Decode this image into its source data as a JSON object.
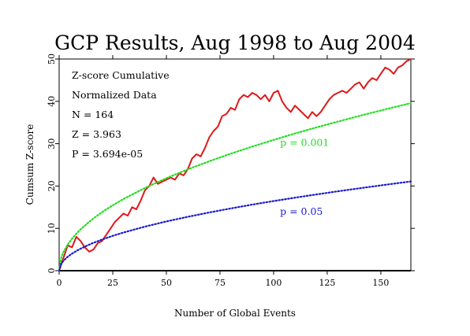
{
  "chart_data": {
    "type": "line",
    "title": "GCP Results, Aug 1998 to Aug 2004",
    "xlabel": "Number of Global Events",
    "ylabel": "Cumsum Z-score",
    "xlim": [
      0,
      164
    ],
    "ylim": [
      0,
      50
    ],
    "x_ticks": [
      0,
      25,
      50,
      75,
      100,
      125,
      150
    ],
    "y_ticks": [
      0,
      10,
      20,
      30,
      40,
      50
    ],
    "grid": false,
    "stats": [
      "Z-score Cumulative",
      "Normalized Data",
      "N = 164",
      "Z = 3.963",
      "P = 3.694e-05"
    ],
    "annotations": [
      {
        "text": "p = 0.001",
        "color": "#22dd22"
      },
      {
        "text": "p = 0.05",
        "color": "#1a1acc"
      }
    ],
    "series": [
      {
        "name": "cumulative",
        "color": "#e01818",
        "style": "solid",
        "x": [
          0,
          2,
          4,
          6,
          8,
          10,
          12,
          14,
          16,
          18,
          20,
          22,
          24,
          26,
          28,
          30,
          32,
          34,
          36,
          38,
          40,
          42,
          44,
          46,
          48,
          50,
          52,
          54,
          56,
          58,
          60,
          62,
          64,
          66,
          68,
          70,
          72,
          74,
          76,
          78,
          80,
          82,
          84,
          86,
          88,
          90,
          92,
          94,
          96,
          98,
          100,
          102,
          104,
          106,
          108,
          110,
          112,
          114,
          116,
          118,
          120,
          122,
          124,
          126,
          128,
          130,
          132,
          134,
          136,
          138,
          140,
          142,
          144,
          146,
          148,
          150,
          152,
          154,
          156,
          158,
          160,
          162,
          164
        ],
        "values": [
          0,
          3,
          6,
          5.5,
          8,
          7,
          5.5,
          4.5,
          5,
          6.5,
          7,
          8.5,
          10,
          11.5,
          12.5,
          13.5,
          13,
          15,
          14.5,
          16.5,
          19,
          20,
          22,
          20.5,
          21,
          21.5,
          22,
          21.5,
          23,
          22.5,
          24,
          26.5,
          27.5,
          27,
          29,
          31.5,
          33,
          34,
          36.5,
          37,
          38.5,
          38,
          40.5,
          41.5,
          41,
          42,
          41.5,
          40.5,
          41.5,
          40,
          42,
          42.5,
          40,
          38.5,
          37.5,
          39,
          38,
          37,
          36,
          37.5,
          36.5,
          37.5,
          39,
          40.5,
          41.5,
          42,
          42.5,
          42,
          43,
          44,
          44.5,
          43,
          44.5,
          45.5,
          45,
          46.5,
          48,
          47.5,
          46.5,
          48,
          48.5,
          49.5,
          50
        ]
      },
      {
        "name": "p = 0.001",
        "color": "#22dd22",
        "style": "dotted",
        "formula": "3.0902*sqrt(n)",
        "x": [
          0,
          1,
          2,
          4,
          6,
          8,
          10,
          15,
          20,
          25,
          30,
          40,
          50,
          60,
          70,
          80,
          90,
          100,
          110,
          120,
          130,
          140,
          150,
          160,
          164
        ],
        "values": [
          0,
          3.09,
          4.37,
          6.18,
          7.57,
          8.74,
          9.77,
          11.97,
          13.82,
          15.45,
          16.93,
          19.54,
          21.85,
          23.94,
          25.85,
          27.64,
          29.32,
          30.9,
          32.41,
          33.85,
          35.23,
          36.56,
          37.85,
          39.09,
          39.58
        ]
      },
      {
        "name": "p = 0.05",
        "color": "#1a1acc",
        "style": "dotted",
        "formula": "1.645*sqrt(n)",
        "x": [
          0,
          1,
          2,
          4,
          6,
          8,
          10,
          15,
          20,
          25,
          30,
          40,
          50,
          60,
          70,
          80,
          90,
          100,
          110,
          120,
          130,
          140,
          150,
          160,
          164
        ],
        "values": [
          0,
          1.65,
          2.33,
          3.29,
          4.03,
          4.65,
          5.2,
          6.37,
          7.36,
          8.23,
          9.01,
          10.4,
          11.63,
          12.74,
          13.76,
          14.71,
          15.61,
          16.45,
          17.25,
          18.02,
          18.76,
          19.46,
          20.15,
          20.81,
          21.07
        ]
      }
    ]
  }
}
